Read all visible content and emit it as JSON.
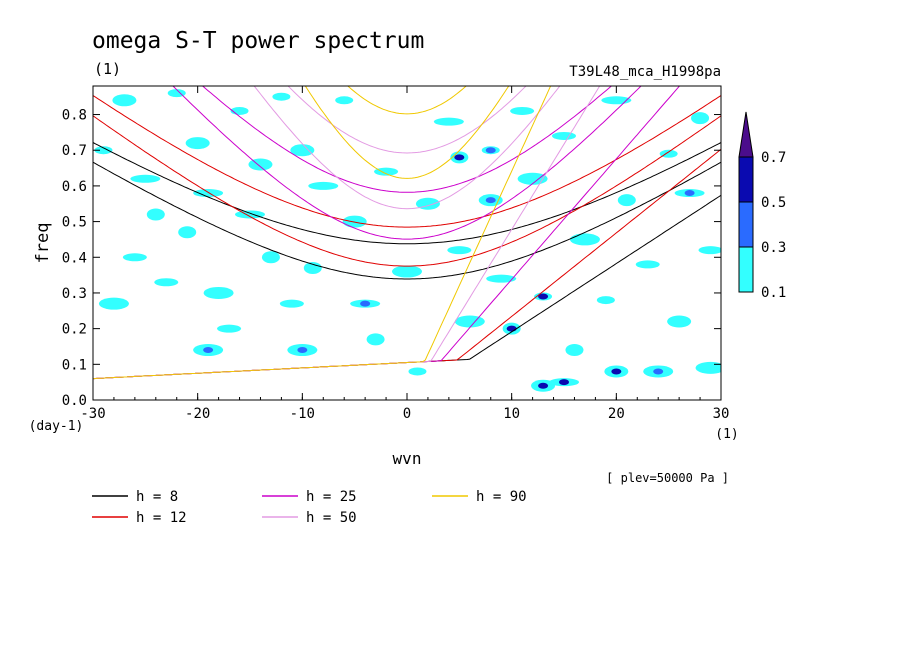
{
  "chart_data": {
    "type": "heatmap",
    "title": "omega S-T power spectrum",
    "unit_label": "(1)",
    "run_label": "T39L48_mca_H1998pa",
    "xlabel": "wvn",
    "x_unit": "(1)",
    "ylabel": "freq",
    "y_unit": "(day-1)",
    "level_label": "[ plev=50000 Pa ]",
    "xlim": [
      -30,
      30
    ],
    "ylim": [
      0,
      0.88
    ],
    "x_ticks": [
      "-30",
      "-20",
      "-10",
      "0",
      "10",
      "20",
      "30"
    ],
    "y_ticks": [
      "0.0",
      "0.1",
      "0.2",
      "0.3",
      "0.4",
      "0.5",
      "0.6",
      "0.7",
      "0.8"
    ],
    "colorbar": {
      "levels": [
        "0.1",
        "0.3",
        "0.5",
        "0.7"
      ],
      "colors": [
        "#33ffff",
        "#2a6bff",
        "#0a0ab0",
        "#4b0d8c"
      ]
    },
    "dispersion_curves": [
      {
        "label": "h =  8",
        "h": 8,
        "color": "#000000"
      },
      {
        "label": "h = 12",
        "h": 12,
        "color": "#e00000"
      },
      {
        "label": "h = 25",
        "h": 25,
        "color": "#cc00cc"
      },
      {
        "label": "h = 50",
        "h": 50,
        "color": "#e39be3"
      },
      {
        "label": "h = 90",
        "h": 90,
        "color": "#f0c800"
      }
    ],
    "power_patches": [
      {
        "x": -29,
        "y": 0.7,
        "level": 1
      },
      {
        "x": -27,
        "y": 0.84,
        "level": 1
      },
      {
        "x": -25,
        "y": 0.62,
        "level": 1
      },
      {
        "x": -24,
        "y": 0.52,
        "level": 1
      },
      {
        "x": -26,
        "y": 0.4,
        "level": 1
      },
      {
        "x": -28,
        "y": 0.27,
        "level": 1
      },
      {
        "x": -22,
        "y": 0.86,
        "level": 1
      },
      {
        "x": -20,
        "y": 0.72,
        "level": 1
      },
      {
        "x": -19,
        "y": 0.58,
        "level": 1
      },
      {
        "x": -21,
        "y": 0.47,
        "level": 1
      },
      {
        "x": -23,
        "y": 0.33,
        "level": 1
      },
      {
        "x": -18,
        "y": 0.3,
        "level": 1
      },
      {
        "x": -16,
        "y": 0.81,
        "level": 1
      },
      {
        "x": -14,
        "y": 0.66,
        "level": 1
      },
      {
        "x": -15,
        "y": 0.52,
        "level": 1
      },
      {
        "x": -13,
        "y": 0.4,
        "level": 1
      },
      {
        "x": -17,
        "y": 0.2,
        "level": 1
      },
      {
        "x": -19,
        "y": 0.14,
        "level": 2
      },
      {
        "x": -12,
        "y": 0.85,
        "level": 1
      },
      {
        "x": -10,
        "y": 0.7,
        "level": 1
      },
      {
        "x": -8,
        "y": 0.6,
        "level": 1
      },
      {
        "x": -9,
        "y": 0.37,
        "level": 1
      },
      {
        "x": -11,
        "y": 0.27,
        "level": 1
      },
      {
        "x": -10,
        "y": 0.14,
        "level": 2
      },
      {
        "x": -6,
        "y": 0.84,
        "level": 1
      },
      {
        "x": -5,
        "y": 0.5,
        "level": 1
      },
      {
        "x": -4,
        "y": 0.27,
        "level": 2
      },
      {
        "x": -3,
        "y": 0.17,
        "level": 1
      },
      {
        "x": -2,
        "y": 0.64,
        "level": 1
      },
      {
        "x": 0,
        "y": 0.36,
        "level": 1
      },
      {
        "x": 1,
        "y": 0.08,
        "level": 1
      },
      {
        "x": 2,
        "y": 0.55,
        "level": 1
      },
      {
        "x": 4,
        "y": 0.78,
        "level": 1
      },
      {
        "x": 5,
        "y": 0.68,
        "level": 3
      },
      {
        "x": 5,
        "y": 0.42,
        "level": 1
      },
      {
        "x": 6,
        "y": 0.22,
        "level": 1
      },
      {
        "x": 8,
        "y": 0.7,
        "level": 2
      },
      {
        "x": 8,
        "y": 0.56,
        "level": 2
      },
      {
        "x": 9,
        "y": 0.34,
        "level": 1
      },
      {
        "x": 10,
        "y": 0.2,
        "level": 3
      },
      {
        "x": 11,
        "y": 0.81,
        "level": 1
      },
      {
        "x": 12,
        "y": 0.62,
        "level": 1
      },
      {
        "x": 13,
        "y": 0.29,
        "level": 3
      },
      {
        "x": 13,
        "y": 0.04,
        "level": 3
      },
      {
        "x": 15,
        "y": 0.05,
        "level": 3
      },
      {
        "x": 16,
        "y": 0.14,
        "level": 1
      },
      {
        "x": 15,
        "y": 0.74,
        "level": 1
      },
      {
        "x": 17,
        "y": 0.45,
        "level": 1
      },
      {
        "x": 19,
        "y": 0.28,
        "level": 1
      },
      {
        "x": 20,
        "y": 0.08,
        "level": 3
      },
      {
        "x": 20,
        "y": 0.84,
        "level": 1
      },
      {
        "x": 21,
        "y": 0.56,
        "level": 1
      },
      {
        "x": 23,
        "y": 0.38,
        "level": 1
      },
      {
        "x": 24,
        "y": 0.08,
        "level": 2
      },
      {
        "x": 25,
        "y": 0.69,
        "level": 1
      },
      {
        "x": 26,
        "y": 0.22,
        "level": 1
      },
      {
        "x": 27,
        "y": 0.58,
        "level": 2
      },
      {
        "x": 28,
        "y": 0.79,
        "level": 1
      },
      {
        "x": 29,
        "y": 0.42,
        "level": 1
      },
      {
        "x": 29,
        "y": 0.09,
        "level": 1
      }
    ]
  }
}
